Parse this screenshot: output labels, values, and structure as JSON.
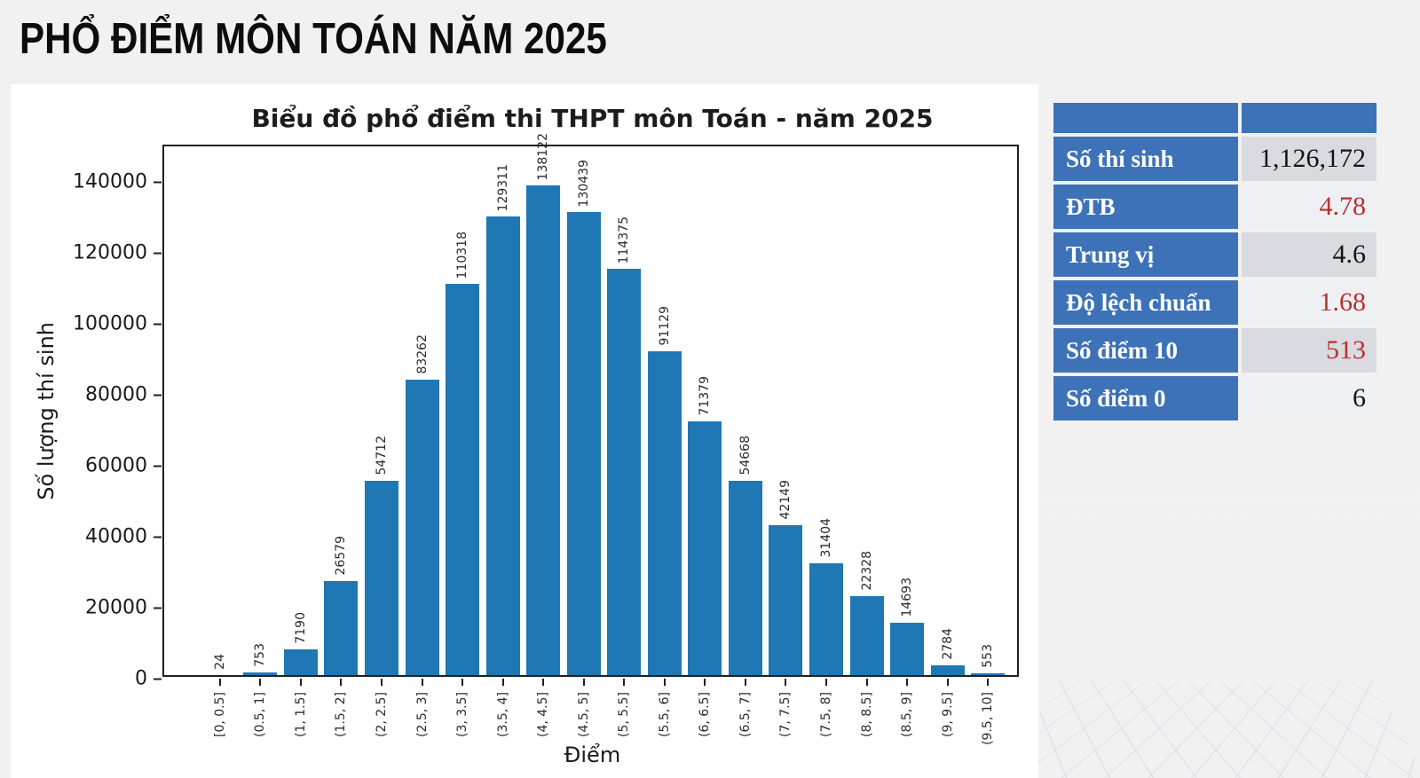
{
  "page": {
    "title": "PHỔ ĐIỂM MÔN TOÁN NĂM 2025",
    "background_color": "#f1f1f2"
  },
  "chart_data": {
    "type": "bar",
    "title": "Biểu đồ phổ điểm thi THPT môn Toán - năm 2025",
    "xlabel": "Điểm",
    "ylabel": "Số lượng thí sinh",
    "categories": [
      "[0, 0.5]",
      "(0.5, 1]",
      "(1, 1.5]",
      "(1.5, 2]",
      "(2, 2.5]",
      "(2.5, 3]",
      "(3, 3.5]",
      "(3.5, 4]",
      "(4, 4.5]",
      "(4.5, 5]",
      "(5, 5.5]",
      "(5.5, 6]",
      "(6, 6.5]",
      "(6.5, 7]",
      "(7, 7.5]",
      "(7.5, 8]",
      "(8, 8.5]",
      "(8.5, 9]",
      "(9, 9.5]",
      "(9.5, 10]"
    ],
    "values": [
      24,
      753,
      7190,
      26579,
      54712,
      83262,
      110318,
      129311,
      138122,
      130439,
      114375,
      91129,
      71379,
      54668,
      42149,
      31404,
      22328,
      14693,
      2784,
      553
    ],
    "y_ticks": [
      0,
      20000,
      40000,
      60000,
      80000,
      100000,
      120000,
      140000
    ],
    "ylim": [
      0,
      150000
    ],
    "grid": false,
    "legend": "none",
    "bar_color": "#1f77b4"
  },
  "stats_table": {
    "label_bg": "#3d72b8",
    "cell_bg_a": "#d9dbe1",
    "cell_bg_b": "#eef0f3",
    "red": "#b93030",
    "black": "#141414",
    "rows": [
      {
        "label": "Số thí sinh",
        "value": "1,126,172",
        "value_color": "#141414"
      },
      {
        "label": "ĐTB",
        "value": "4.78",
        "value_color": "#b93030"
      },
      {
        "label": "Trung vị",
        "value": "4.6",
        "value_color": "#141414"
      },
      {
        "label": "Độ lệch chuẩn",
        "value": "1.68",
        "value_color": "#b93030"
      },
      {
        "label": "Số điểm 10",
        "value": "513",
        "value_color": "#b93030"
      },
      {
        "label": "Số điểm 0",
        "value": "6",
        "value_color": "#141414"
      }
    ]
  }
}
